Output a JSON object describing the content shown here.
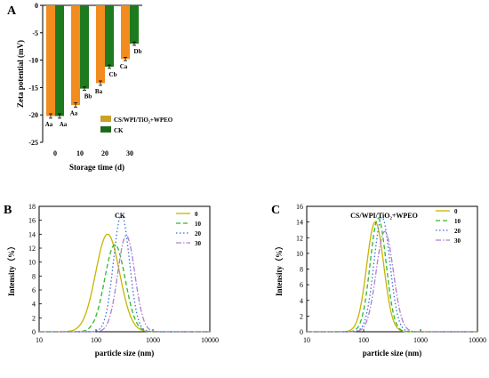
{
  "chart_data": [
    {
      "panel_label": "A",
      "type": "bar",
      "categories": [
        "0",
        "10",
        "20",
        "30"
      ],
      "xlabel": "Storage time (d)",
      "ylabel": "Zeta potential (mV)",
      "ylim": [
        -25,
        0
      ],
      "yticks": [
        "-25",
        "-20",
        "-15",
        "-10",
        "-5",
        "0"
      ],
      "series": [
        {
          "name": "CS/WPI/TiO₂+WPEO",
          "color": "#F28C1E",
          "values": [
            -20.2,
            -18.2,
            -14.2,
            -9.8
          ],
          "errors": [
            0.4,
            0.4,
            0.4,
            0.3
          ],
          "letters": [
            "Aa",
            "Aa",
            "Ba",
            "Ca"
          ]
        },
        {
          "name": "CK",
          "color": "#1E7A1E",
          "values": [
            -20.2,
            -15.2,
            -11.2,
            -7.0
          ],
          "errors": [
            0.4,
            0.3,
            0.3,
            0.3
          ],
          "letters": [
            "Aa",
            "Bb",
            "Cb",
            "Db"
          ]
        }
      ],
      "legend_position": "bottom-right",
      "legend_swatch_colors": [
        "#C9A227",
        "#1E6B1E"
      ]
    },
    {
      "panel_label": "B",
      "type": "line",
      "title": "CK",
      "xlabel": "particle size (nm)",
      "ylabel": "Intensity（%）",
      "xscale": "log",
      "xlim": [
        10,
        10000
      ],
      "xticks": [
        "10",
        "100",
        "1000",
        "10000"
      ],
      "ylim": [
        0,
        18
      ],
      "yticks": [
        "0",
        "2",
        "4",
        "6",
        "8",
        "10",
        "12",
        "14",
        "16",
        "18"
      ],
      "series": [
        {
          "name": "0",
          "color": "#C8B400",
          "dash": "solid",
          "peak_x": 160,
          "peak_y": 14.0,
          "width": 0.21
        },
        {
          "name": "10",
          "color": "#2EB82E",
          "dash": "dash",
          "peak_x": 215,
          "peak_y": 12.5,
          "width": 0.18
        },
        {
          "name": "20",
          "color": "#3A6FE0",
          "dash": "dot",
          "peak_x": 280,
          "peak_y": 16.8,
          "width": 0.14
        },
        {
          "name": "30",
          "color": "#B07FD0",
          "dash": "dashdot",
          "peak_x": 340,
          "peak_y": 13.8,
          "width": 0.15
        }
      ],
      "legend_position": "top-right"
    },
    {
      "panel_label": "C",
      "type": "line",
      "title": "CS/WPI/TiO₂+WPEO",
      "xlabel": "particle size (nm)",
      "ylabel": "Intensity（%）",
      "xscale": "log",
      "xlim": [
        10,
        10000
      ],
      "xticks": [
        "10",
        "100",
        "1000",
        "10000"
      ],
      "ylim": [
        0,
        16
      ],
      "yticks": [
        "0",
        "2",
        "4",
        "6",
        "8",
        "10",
        "12",
        "14",
        "16"
      ],
      "series": [
        {
          "name": "0",
          "color": "#C8B400",
          "dash": "solid",
          "peak_x": 160,
          "peak_y": 14.0,
          "width": 0.15
        },
        {
          "name": "10",
          "color": "#2EB82E",
          "dash": "dash",
          "peak_x": 180,
          "peak_y": 14.5,
          "width": 0.14
        },
        {
          "name": "20",
          "color": "#3A6FE0",
          "dash": "dot",
          "peak_x": 210,
          "peak_y": 14.6,
          "width": 0.14
        },
        {
          "name": "30",
          "color": "#B07FD0",
          "dash": "dashdot",
          "peak_x": 235,
          "peak_y": 12.8,
          "width": 0.15
        }
      ],
      "legend_position": "top-right"
    }
  ]
}
